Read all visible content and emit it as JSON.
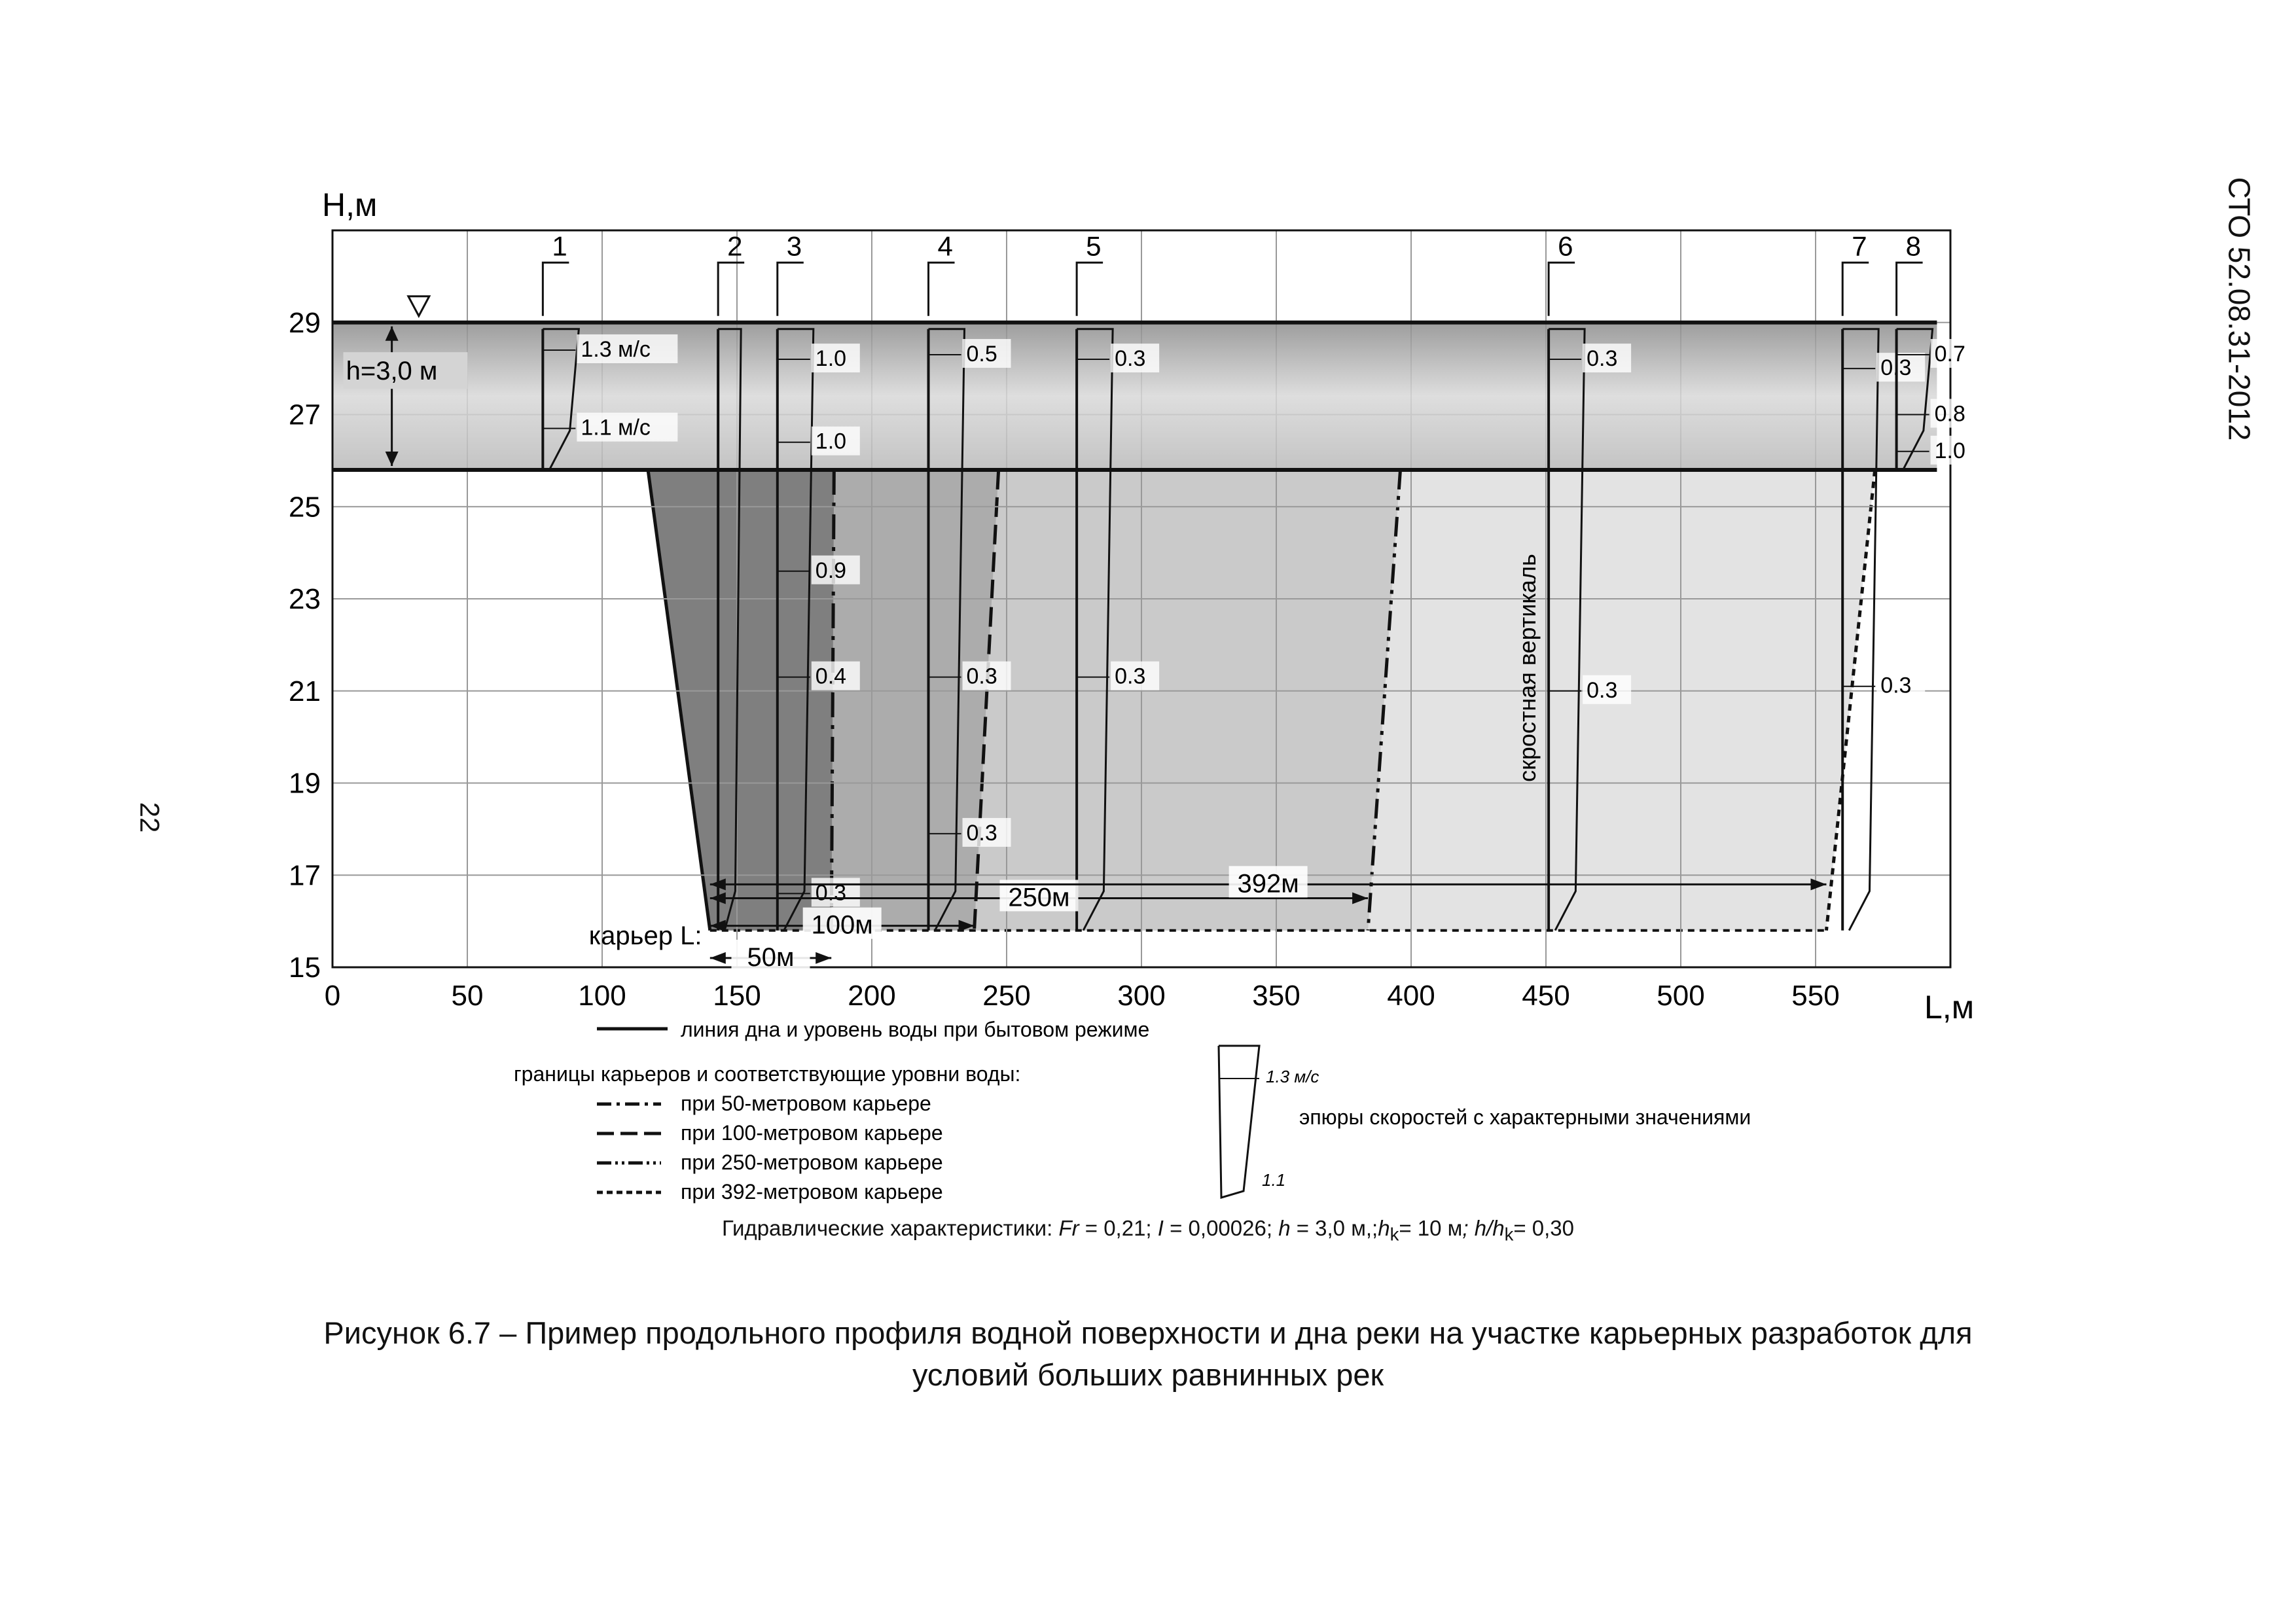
{
  "header": {
    "doc_code": "СТО 52.08.31-2012",
    "page_number": "22"
  },
  "caption": {
    "line1": "Рисунок 6.7 – Пример продольного профиля водной поверхности и дна реки на участке карьерных разработок для",
    "line2": "условий больших равнинных рек"
  },
  "hydraulics": {
    "prefix": "Гидравлические характеристики: ",
    "fr_label": "Fr",
    "fr_value": " = 0,21; ",
    "i_label": "I",
    "i_value": " = 0,00026; ",
    "h_label": "h",
    "h_value": " = 3,0 м,;",
    "hk_label": "h",
    "hk_sub": "k",
    "hk_value": "= 10 м",
    "ratio_label": "; h/h",
    "ratio_sub": "k",
    "ratio_value": "= 0,30"
  },
  "chart_data": {
    "type": "line",
    "xlabel": "L,м",
    "ylabel": "Н,м",
    "xlim": [
      0,
      600
    ],
    "ylim": [
      15,
      31
    ],
    "x_ticks": [
      "0",
      "50",
      "100",
      "150",
      "200",
      "250",
      "300",
      "350",
      "400",
      "450",
      "500",
      "550"
    ],
    "y_ticks": [
      "15",
      "17",
      "19",
      "21",
      "23",
      "25",
      "27",
      "29"
    ],
    "water_level": 29.0,
    "natural_bed": 25.8,
    "pit_bottom": 15.8,
    "depth_label": "h=3,0 м",
    "pit_label": "карьер L:",
    "pit_dims": [
      {
        "name": "50м",
        "left": 140,
        "right": 185,
        "top_right": 186,
        "color": "#7a7a7a"
      },
      {
        "name": "100м",
        "left": 140,
        "right": 238,
        "top_right": 247,
        "color": "#a9a9a9"
      },
      {
        "name": "250м",
        "left": 140,
        "right": 384,
        "top_right": 396,
        "color": "#c6c6c6"
      },
      {
        "name": "392м",
        "left": 140,
        "right": 554,
        "top_right": 572,
        "color": "#e0e0e0"
      }
    ],
    "verticals": [
      {
        "id": "1",
        "x": 78,
        "labels": [
          {
            "text": "1.3 м/с",
            "y": 28.4
          },
          {
            "text": "1.1 м/с",
            "y": 26.7
          }
        ]
      },
      {
        "id": "2",
        "x": 143,
        "labels": []
      },
      {
        "id": "3",
        "x": 165,
        "labels": [
          {
            "text": "1.0",
            "y": 28.2
          },
          {
            "text": "1.0",
            "y": 26.4
          },
          {
            "text": "0.9",
            "y": 23.6
          },
          {
            "text": "0.4",
            "y": 21.3
          },
          {
            "text": "0.3",
            "y": 16.6
          }
        ]
      },
      {
        "id": "4",
        "x": 221,
        "labels": [
          {
            "text": "0.5",
            "y": 28.3
          },
          {
            "text": "0.3",
            "y": 21.3
          },
          {
            "text": "0.3",
            "y": 17.9
          }
        ]
      },
      {
        "id": "5",
        "x": 276,
        "labels": [
          {
            "text": "0.3",
            "y": 28.2
          },
          {
            "text": "0.3",
            "y": 21.3
          }
        ]
      },
      {
        "id": "6",
        "x": 451,
        "labels": [
          {
            "text": "0.3",
            "y": 28.2
          },
          {
            "text": "0.3",
            "y": 21.0
          }
        ]
      },
      {
        "id": "7",
        "x": 560,
        "labels": [
          {
            "text": "0.3",
            "y": 28.0
          },
          {
            "text": "0.3",
            "y": 21.1
          }
        ]
      },
      {
        "id": "8",
        "x": 580,
        "labels": [
          {
            "text": "0.7",
            "y": 28.3
          },
          {
            "text": "0.8",
            "y": 27.0
          },
          {
            "text": "1.0",
            "y": 26.2
          }
        ]
      }
    ],
    "velocity_vertical_label": "скростная вертикаль",
    "dims": [
      {
        "text": "50м",
        "x1": 140,
        "x2": 185,
        "y": 15.2
      },
      {
        "text": "100м",
        "x1": 140,
        "x2": 238,
        "y": 15.9
      },
      {
        "text": "250м",
        "x1": 140,
        "x2": 384,
        "y": 16.5
      },
      {
        "text": "392м",
        "x1": 140,
        "x2": 554,
        "y": 16.8
      }
    ],
    "legend": {
      "bed_line": "линия  дна и уровень воды при бытовом режиме",
      "pits_title": "границы карьеров и  соответствующие уровни  воды:",
      "pit50": "при 50-метровом карьере",
      "pit100": "при 100-метровом карьере",
      "pit250": "при 250-метровом карьере",
      "pit392": "при 392-метровом карьере",
      "epure_top": "1.3 м/с",
      "epure_bottom": "1.1",
      "epure_text": "эпюры скоростей с характерными  значениями"
    }
  }
}
